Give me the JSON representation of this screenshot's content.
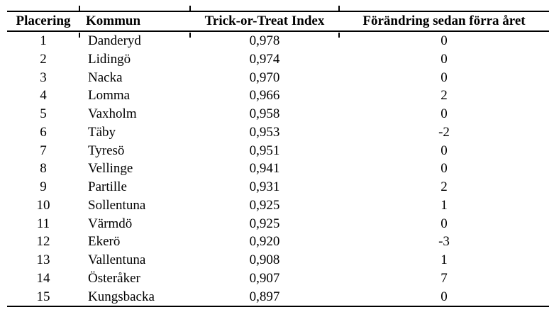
{
  "colors": {
    "background": "#ffffff",
    "text": "#000000",
    "rule": "#000000"
  },
  "table": {
    "columns": [
      "Placering",
      "Kommun",
      "Trick-or-Treat Index",
      "Förändring sedan förra året"
    ],
    "rows": [
      [
        "1",
        "Danderyd",
        "0,978",
        "0"
      ],
      [
        "2",
        "Lidingö",
        "0,974",
        "0"
      ],
      [
        "3",
        "Nacka",
        "0,970",
        "0"
      ],
      [
        "4",
        "Lomma",
        "0,966",
        "2"
      ],
      [
        "5",
        "Vaxholm",
        "0,958",
        "0"
      ],
      [
        "6",
        "Täby",
        "0,953",
        "-2"
      ],
      [
        "7",
        "Tyresö",
        "0,951",
        "0"
      ],
      [
        "8",
        "Vellinge",
        "0,941",
        "0"
      ],
      [
        "9",
        "Partille",
        "0,931",
        "2"
      ],
      [
        "10",
        "Sollentuna",
        "0,925",
        "1"
      ],
      [
        "11",
        "Värmdö",
        "0,925",
        "0"
      ],
      [
        "12",
        "Ekerö",
        "0,920",
        "-3"
      ],
      [
        "13",
        "Vallentuna",
        "0,908",
        "1"
      ],
      [
        "14",
        "Österåker",
        "0,907",
        "7"
      ],
      [
        "15",
        "Kungsbacka",
        "0,897",
        "0"
      ]
    ]
  }
}
